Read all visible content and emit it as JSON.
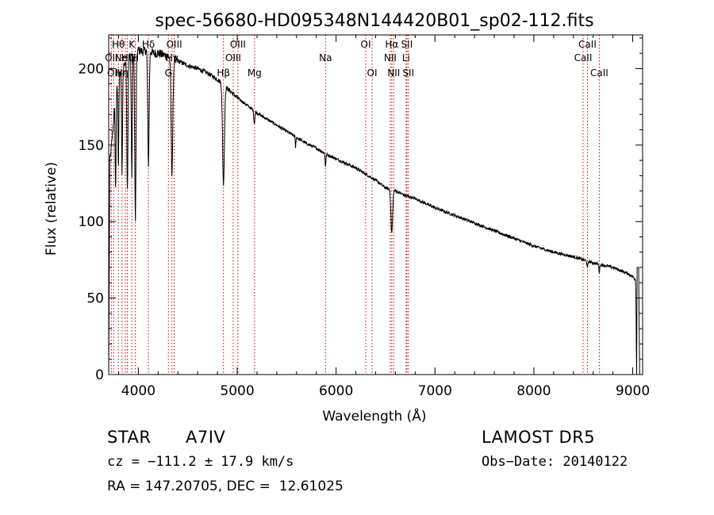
{
  "chart_data": {
    "type": "line",
    "title": "spec-56680-HD095348N144420B01_sp02-112.fits",
    "xlabel": "Wavelength (Å)",
    "ylabel": "Flux (relative)",
    "xlim": [
      3700,
      9100
    ],
    "ylim": [
      0,
      222
    ],
    "xticks": [
      4000,
      5000,
      6000,
      7000,
      8000,
      9000
    ],
    "yticks": [
      0,
      50,
      100,
      150,
      200
    ],
    "grid": false,
    "colors": {
      "spectrum": "#000000",
      "lines": "#cc0000"
    },
    "continuum": [
      [
        3700,
        0
      ],
      [
        3712,
        140
      ],
      [
        3730,
        150
      ],
      [
        3760,
        175
      ],
      [
        3790,
        190
      ],
      [
        3830,
        200
      ],
      [
        3870,
        204
      ],
      [
        3900,
        206
      ],
      [
        3950,
        210
      ],
      [
        4000,
        212
      ],
      [
        4050,
        211
      ],
      [
        4100,
        213
      ],
      [
        4150,
        210
      ],
      [
        4200,
        210
      ],
      [
        4250,
        209
      ],
      [
        4300,
        208
      ],
      [
        4400,
        205
      ],
      [
        4500,
        202
      ],
      [
        4600,
        200
      ],
      [
        4700,
        197
      ],
      [
        4800,
        193
      ],
      [
        4900,
        187
      ],
      [
        5000,
        181
      ],
      [
        5100,
        176
      ],
      [
        5200,
        171
      ],
      [
        5300,
        167
      ],
      [
        5400,
        163
      ],
      [
        5500,
        159
      ],
      [
        5600,
        155
      ],
      [
        5700,
        151
      ],
      [
        5800,
        148
      ],
      [
        5900,
        144
      ],
      [
        6000,
        141
      ],
      [
        6100,
        138
      ],
      [
        6200,
        135
      ],
      [
        6300,
        131
      ],
      [
        6400,
        127
      ],
      [
        6500,
        122
      ],
      [
        6600,
        120
      ],
      [
        6700,
        117
      ],
      [
        6800,
        115
      ],
      [
        6900,
        112
      ],
      [
        7000,
        109
      ],
      [
        7200,
        104
      ],
      [
        7400,
        99
      ],
      [
        7600,
        94
      ],
      [
        7800,
        89
      ],
      [
        8000,
        84
      ],
      [
        8200,
        80
      ],
      [
        8400,
        77
      ],
      [
        8600,
        73
      ],
      [
        8800,
        70
      ],
      [
        8950,
        66
      ],
      [
        9000,
        64
      ],
      [
        9030,
        62
      ],
      [
        9040,
        0
      ]
    ],
    "absorption": [
      {
        "x": 3770,
        "depth": 60,
        "width": 6
      },
      {
        "x": 3798,
        "depth": 55,
        "width": 6
      },
      {
        "x": 3835,
        "depth": 70,
        "width": 7
      },
      {
        "x": 3889,
        "depth": 85,
        "width": 8
      },
      {
        "x": 3934,
        "depth": 80,
        "width": 7
      },
      {
        "x": 3970,
        "depth": 110,
        "width": 9
      },
      {
        "x": 4102,
        "depth": 75,
        "width": 10
      },
      {
        "x": 4340,
        "depth": 75,
        "width": 12
      },
      {
        "x": 4861,
        "depth": 65,
        "width": 13
      },
      {
        "x": 5173,
        "depth": 8,
        "width": 8
      },
      {
        "x": 5590,
        "depth": 8,
        "width": 4
      },
      {
        "x": 5893,
        "depth": 8,
        "width": 6
      },
      {
        "x": 6563,
        "depth": 28,
        "width": 12
      },
      {
        "x": 8542,
        "depth": 5,
        "width": 6
      },
      {
        "x": 8662,
        "depth": 5,
        "width": 6
      }
    ],
    "line_markers": [
      {
        "x": 3727,
        "label": "OII",
        "row": 1
      },
      {
        "x": 3750,
        "label": "OII",
        "row": 2
      },
      {
        "x": 3798,
        "label": "Hθ",
        "row": 0
      },
      {
        "x": 3835,
        "label": "Hη",
        "row": 2
      },
      {
        "x": 3869,
        "label": "NeIII",
        "row": 1
      },
      {
        "x": 3889,
        "label": "Hζ",
        "row": 1
      },
      {
        "x": 3934,
        "label": "K",
        "row": 0
      },
      {
        "x": 3969,
        "label": "H",
        "row": 1
      },
      {
        "x": 4102,
        "label": "Hδ",
        "row": 0
      },
      {
        "x": 4304,
        "label": "G",
        "row": 2
      },
      {
        "x": 4340,
        "label": "Hγ",
        "row": 1
      },
      {
        "x": 4363,
        "label": "OIII",
        "row": 0
      },
      {
        "x": 4861,
        "label": "Hβ",
        "row": 2
      },
      {
        "x": 4959,
        "label": "OIII",
        "row": 1
      },
      {
        "x": 5007,
        "label": "OIII",
        "row": 0
      },
      {
        "x": 5175,
        "label": "Mg",
        "row": 2
      },
      {
        "x": 5893,
        "label": "Na",
        "row": 1
      },
      {
        "x": 6300,
        "label": "OI",
        "row": 0
      },
      {
        "x": 6364,
        "label": "OI",
        "row": 2
      },
      {
        "x": 6548,
        "label": "NII",
        "row": 1
      },
      {
        "x": 6563,
        "label": "Hα",
        "row": 0
      },
      {
        "x": 6583,
        "label": "NII",
        "row": 2
      },
      {
        "x": 6708,
        "label": "Li",
        "row": 1
      },
      {
        "x": 6716,
        "label": "SII",
        "row": 0
      },
      {
        "x": 6731,
        "label": "SII",
        "row": 2
      },
      {
        "x": 8498,
        "label": "CaII",
        "row": 1
      },
      {
        "x": 8542,
        "label": "CaII",
        "row": 0
      },
      {
        "x": 8662,
        "label": "CaII",
        "row": 2
      }
    ]
  },
  "info": {
    "object_class": "STAR",
    "subclass": "A7IV",
    "survey": "LAMOST DR5",
    "velocity": "cz = −111.2 ± 17.9 km/s",
    "obs_date": "Obs−Date: 20140122",
    "coords": "RA = 147.20705, DEC =  12.61025"
  }
}
